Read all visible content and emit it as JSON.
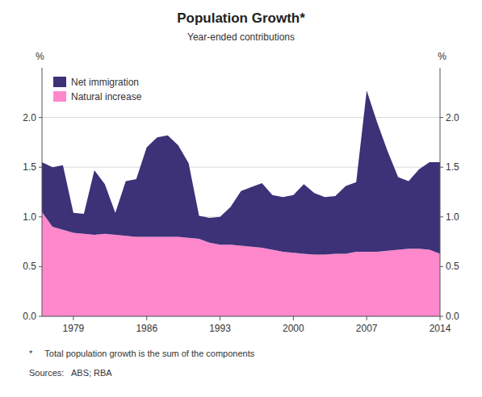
{
  "chart_data": {
    "type": "area",
    "title": "Population Growth*",
    "subtitle": "Year-ended contributions",
    "ylabel": "%",
    "y2label": "%",
    "footnote": "*     Total population growth is the sum of the components",
    "sources": "Sources:   ABS; RBA",
    "stacked": true,
    "grid": true,
    "legend": "top-left",
    "x": [
      1976,
      1977,
      1978,
      1979,
      1980,
      1981,
      1982,
      1983,
      1984,
      1985,
      1986,
      1987,
      1988,
      1989,
      1990,
      1991,
      1992,
      1993,
      1994,
      1995,
      1996,
      1997,
      1998,
      1999,
      2000,
      2001,
      2002,
      2003,
      2004,
      2005,
      2006,
      2007,
      2008,
      2009,
      2010,
      2011,
      2012,
      2013,
      2014
    ],
    "xlim": [
      1976,
      2014
    ],
    "xticks": [
      1979,
      1986,
      1993,
      2000,
      2007,
      2014
    ],
    "ylim": [
      0.0,
      2.5
    ],
    "yticks": [
      {
        "value": 0.0,
        "label": "0.0"
      },
      0.5,
      {
        "value": 1.0,
        "label": "1.0"
      },
      1.5,
      {
        "value": 2.0,
        "label": "2.0"
      }
    ],
    "y2lim": [
      0.0,
      2.5
    ],
    "y2ticks": [
      {
        "value": 0.0,
        "label": "0.0"
      },
      0.5,
      {
        "value": 1.0,
        "label": "1.0"
      },
      1.5,
      {
        "value": 2.0,
        "label": "2.0"
      }
    ],
    "series": [
      {
        "name": "Natural increase",
        "color": "#ff88cc",
        "values": [
          1.05,
          0.9,
          0.87,
          0.84,
          0.83,
          0.82,
          0.83,
          0.82,
          0.81,
          0.8,
          0.8,
          0.8,
          0.8,
          0.8,
          0.79,
          0.78,
          0.74,
          0.72,
          0.72,
          0.71,
          0.7,
          0.69,
          0.67,
          0.65,
          0.64,
          0.63,
          0.62,
          0.62,
          0.63,
          0.63,
          0.65,
          0.65,
          0.65,
          0.66,
          0.67,
          0.68,
          0.68,
          0.67,
          0.63
        ]
      },
      {
        "name": "Net immigration",
        "color": "#3d3178",
        "values": [
          0.5,
          0.6,
          0.65,
          0.2,
          0.2,
          0.65,
          0.5,
          0.22,
          0.55,
          0.58,
          0.9,
          1.0,
          1.02,
          0.92,
          0.75,
          0.23,
          0.25,
          0.28,
          0.38,
          0.55,
          0.6,
          0.65,
          0.55,
          0.55,
          0.58,
          0.7,
          0.62,
          0.58,
          0.58,
          0.68,
          0.7,
          1.62,
          1.3,
          1.0,
          0.73,
          0.68,
          0.8,
          0.88,
          0.92
        ]
      }
    ]
  }
}
